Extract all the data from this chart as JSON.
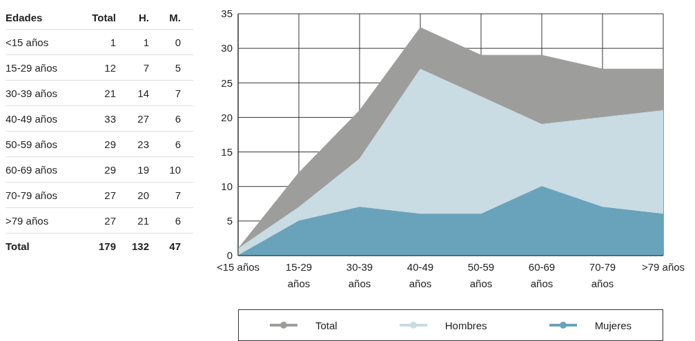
{
  "chart_data": [
    {
      "type": "heatmap",
      "ylabel": "Edades",
      "categories": [
        "Total",
        "H.",
        "M."
      ],
      "y_categories": [
        "<15 años",
        "15-29 años",
        "30-39 años",
        "40-49 años",
        "50-59 años",
        "60-69 años",
        "70-79 años",
        ">79 años",
        "Total"
      ],
      "cells": [
        [
          1,
          1,
          0
        ],
        [
          12,
          7,
          5
        ],
        [
          21,
          14,
          7
        ],
        [
          33,
          27,
          6
        ],
        [
          29,
          23,
          6
        ],
        [
          29,
          19,
          10
        ],
        [
          27,
          20,
          7
        ],
        [
          27,
          21,
          6
        ],
        [
          179,
          132,
          47
        ]
      ],
      "data_labels": true
    },
    {
      "type": "area",
      "categories": [
        "<15 años",
        "15-29 años",
        "30-39 años",
        "40-49 años",
        "50-59 años",
        "60-69 años",
        "70-79 años",
        ">79 años"
      ],
      "series": [
        {
          "name": "Total",
          "color": "#9d9d9c",
          "values": [
            1,
            12,
            21,
            33,
            29,
            29,
            27,
            27
          ]
        },
        {
          "name": "Hombres",
          "color": "#c9dbe3",
          "values": [
            1,
            7,
            14,
            27,
            23,
            19,
            20,
            21
          ]
        },
        {
          "name": "Mujeres",
          "color": "#68a3bb",
          "values": [
            0,
            5,
            7,
            6,
            6,
            10,
            7,
            6
          ]
        }
      ],
      "ylim": [
        0,
        35
      ],
      "yticks": [
        0,
        5,
        10,
        15,
        20,
        25,
        30,
        35
      ],
      "grid": true,
      "legend": "bottom"
    }
  ]
}
